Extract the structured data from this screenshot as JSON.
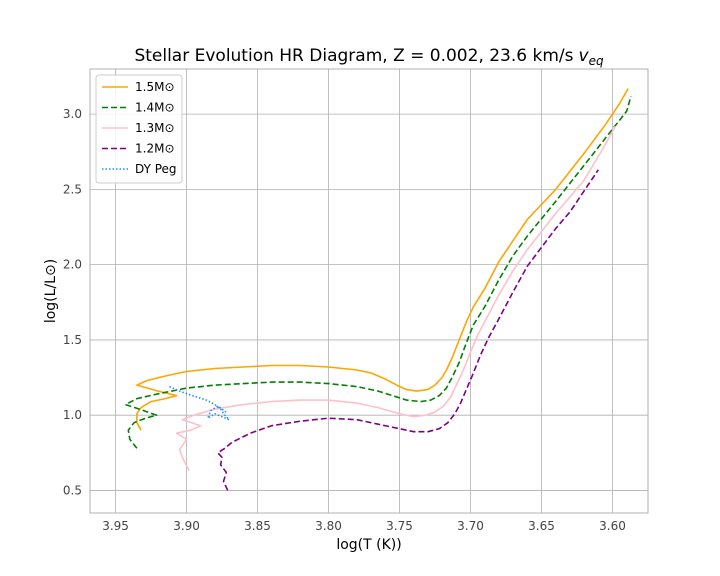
{
  "chart_data": {
    "type": "line",
    "title": "Stellar Evolution HR Diagram, Z = 0.002, 23.6 km/s",
    "title_sub": "v",
    "title_subscript": "eq",
    "xlabel": "log(T (K))",
    "ylabel": "log(L/L⊙)",
    "xlim": [
      3.968,
      3.575
    ],
    "ylim": [
      0.35,
      3.3
    ],
    "x_inverted": true,
    "grid": true,
    "legend_position": "top-left",
    "xticks": [
      {
        "value": 3.95,
        "label": "3.95"
      },
      {
        "value": 3.9,
        "label": "3.90"
      },
      {
        "value": 3.85,
        "label": "3.85"
      },
      {
        "value": 3.8,
        "label": "3.80"
      },
      {
        "value": 3.75,
        "label": "3.75"
      },
      {
        "value": 3.7,
        "label": "3.70"
      },
      {
        "value": 3.65,
        "label": "3.65"
      },
      {
        "value": 3.6,
        "label": "3.60"
      }
    ],
    "yticks": [
      {
        "value": 0.5,
        "label": "0.5"
      },
      {
        "value": 1.0,
        "label": "1.0"
      },
      {
        "value": 1.5,
        "label": "1.5"
      },
      {
        "value": 2.0,
        "label": "2.0"
      },
      {
        "value": 2.5,
        "label": "2.5"
      },
      {
        "value": 3.0,
        "label": "3.0"
      }
    ],
    "series": [
      {
        "name": "1.5M⊙",
        "color": "#ffa500",
        "dash": "solid",
        "points": [
          [
            3.932,
            0.9
          ],
          [
            3.935,
            0.95
          ],
          [
            3.935,
            1.01
          ],
          [
            3.932,
            1.05
          ],
          [
            3.925,
            1.09
          ],
          [
            3.915,
            1.11
          ],
          [
            3.907,
            1.13
          ],
          [
            3.92,
            1.16
          ],
          [
            3.935,
            1.2
          ],
          [
            3.928,
            1.23
          ],
          [
            3.915,
            1.26
          ],
          [
            3.9,
            1.29
          ],
          [
            3.88,
            1.31
          ],
          [
            3.86,
            1.32
          ],
          [
            3.84,
            1.33
          ],
          [
            3.82,
            1.33
          ],
          [
            3.8,
            1.32
          ],
          [
            3.78,
            1.3
          ],
          [
            3.77,
            1.28
          ],
          [
            3.76,
            1.24
          ],
          [
            3.752,
            1.2
          ],
          [
            3.745,
            1.17
          ],
          [
            3.738,
            1.16
          ],
          [
            3.73,
            1.17
          ],
          [
            3.725,
            1.2
          ],
          [
            3.72,
            1.25
          ],
          [
            3.717,
            1.3
          ],
          [
            3.713,
            1.38
          ],
          [
            3.708,
            1.5
          ],
          [
            3.703,
            1.62
          ],
          [
            3.698,
            1.72
          ],
          [
            3.69,
            1.84
          ],
          [
            3.68,
            2.02
          ],
          [
            3.67,
            2.16
          ],
          [
            3.66,
            2.3
          ],
          [
            3.64,
            2.5
          ],
          [
            3.62,
            2.74
          ],
          [
            3.605,
            2.93
          ],
          [
            3.595,
            3.07
          ],
          [
            3.589,
            3.17
          ]
        ]
      },
      {
        "name": "1.4M⊙",
        "color": "#008000",
        "dash": "dashed",
        "points": [
          [
            3.935,
            0.78
          ],
          [
            3.94,
            0.84
          ],
          [
            3.941,
            0.9
          ],
          [
            3.937,
            0.95
          ],
          [
            3.929,
            0.98
          ],
          [
            3.921,
            1.0
          ],
          [
            3.93,
            1.03
          ],
          [
            3.943,
            1.07
          ],
          [
            3.935,
            1.11
          ],
          [
            3.921,
            1.14
          ],
          [
            3.9,
            1.18
          ],
          [
            3.88,
            1.2
          ],
          [
            3.86,
            1.21
          ],
          [
            3.84,
            1.22
          ],
          [
            3.82,
            1.22
          ],
          [
            3.8,
            1.21
          ],
          [
            3.78,
            1.19
          ],
          [
            3.765,
            1.16
          ],
          [
            3.755,
            1.13
          ],
          [
            3.745,
            1.1
          ],
          [
            3.735,
            1.09
          ],
          [
            3.728,
            1.1
          ],
          [
            3.722,
            1.13
          ],
          [
            3.717,
            1.18
          ],
          [
            3.713,
            1.25
          ],
          [
            3.708,
            1.35
          ],
          [
            3.703,
            1.48
          ],
          [
            3.698,
            1.6
          ],
          [
            3.69,
            1.72
          ],
          [
            3.68,
            1.9
          ],
          [
            3.67,
            2.06
          ],
          [
            3.66,
            2.19
          ],
          [
            3.64,
            2.42
          ],
          [
            3.62,
            2.66
          ],
          [
            3.6,
            2.9
          ],
          [
            3.59,
            3.02
          ],
          [
            3.587,
            3.12
          ]
        ]
      },
      {
        "name": "1.3M⊙",
        "color": "#ffc0cb",
        "dash": "solid",
        "points": [
          [
            3.898,
            0.63
          ],
          [
            3.902,
            0.7
          ],
          [
            3.905,
            0.77
          ],
          [
            3.9,
            0.84
          ],
          [
            3.907,
            0.88
          ],
          [
            3.897,
            0.9
          ],
          [
            3.89,
            0.93
          ],
          [
            3.903,
            0.97
          ],
          [
            3.895,
            1.0
          ],
          [
            3.88,
            1.04
          ],
          [
            3.86,
            1.07
          ],
          [
            3.84,
            1.09
          ],
          [
            3.82,
            1.1
          ],
          [
            3.8,
            1.1
          ],
          [
            3.78,
            1.08
          ],
          [
            3.765,
            1.05
          ],
          [
            3.75,
            1.01
          ],
          [
            3.74,
            0.99
          ],
          [
            3.732,
            1.0
          ],
          [
            3.725,
            1.02
          ],
          [
            3.719,
            1.06
          ],
          [
            3.714,
            1.12
          ],
          [
            3.71,
            1.2
          ],
          [
            3.705,
            1.3
          ],
          [
            3.7,
            1.42
          ],
          [
            3.695,
            1.53
          ],
          [
            3.69,
            1.62
          ],
          [
            3.68,
            1.8
          ],
          [
            3.67,
            1.96
          ],
          [
            3.66,
            2.1
          ],
          [
            3.64,
            2.34
          ],
          [
            3.62,
            2.56
          ],
          [
            3.605,
            2.8
          ],
          [
            3.598,
            2.92
          ]
        ]
      },
      {
        "name": "1.2M⊙",
        "color": "#800080",
        "dash": "dashed",
        "points": [
          [
            3.871,
            0.5
          ],
          [
            3.874,
            0.56
          ],
          [
            3.872,
            0.62
          ],
          [
            3.876,
            0.67
          ],
          [
            3.875,
            0.72
          ],
          [
            3.878,
            0.75
          ],
          [
            3.873,
            0.78
          ],
          [
            3.868,
            0.82
          ],
          [
            3.855,
            0.88
          ],
          [
            3.84,
            0.93
          ],
          [
            3.82,
            0.96
          ],
          [
            3.8,
            0.98
          ],
          [
            3.78,
            0.97
          ],
          [
            3.765,
            0.94
          ],
          [
            3.75,
            0.91
          ],
          [
            3.74,
            0.89
          ],
          [
            3.73,
            0.89
          ],
          [
            3.722,
            0.91
          ],
          [
            3.716,
            0.95
          ],
          [
            3.711,
            1.01
          ],
          [
            3.707,
            1.08
          ],
          [
            3.703,
            1.17
          ],
          [
            3.698,
            1.28
          ],
          [
            3.693,
            1.4
          ],
          [
            3.687,
            1.52
          ],
          [
            3.68,
            1.64
          ],
          [
            3.67,
            1.82
          ],
          [
            3.66,
            1.99
          ],
          [
            3.64,
            2.24
          ],
          [
            3.63,
            2.35
          ],
          [
            3.62,
            2.49
          ],
          [
            3.61,
            2.63
          ]
        ]
      },
      {
        "name": "DY Peg",
        "color": "#1e90ff",
        "dash": "dotted",
        "points": [
          [
            3.912,
            1.19
          ],
          [
            3.905,
            1.16
          ],
          [
            3.896,
            1.13
          ],
          [
            3.886,
            1.1
          ],
          [
            3.88,
            1.07
          ],
          [
            3.876,
            1.04
          ],
          [
            3.873,
            1.0
          ],
          [
            3.87,
            0.97
          ],
          [
            3.875,
            0.99
          ],
          [
            3.88,
            1.01
          ],
          [
            3.885,
            0.98
          ],
          [
            3.883,
            1.03
          ],
          [
            3.878,
            1.06
          ],
          [
            3.872,
            1.02
          ]
        ]
      }
    ]
  }
}
